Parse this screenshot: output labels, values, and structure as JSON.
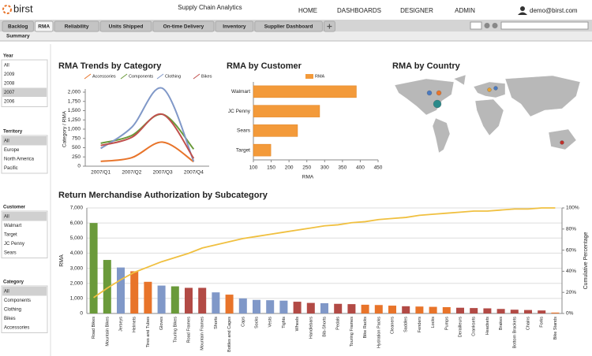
{
  "header": {
    "logo": "birst",
    "app_title": "Supply Chain Analytics",
    "nav": [
      "HOME",
      "DASHBOARDS",
      "DESIGNER",
      "ADMIN"
    ],
    "user": "demo@birst.com"
  },
  "tabs": {
    "items": [
      "Backlog",
      "RMA",
      "Reliability",
      "Units Shipped",
      "On-time Delivery",
      "Inventory",
      "Supplier Dashboard"
    ],
    "active": 1,
    "subtab": "Summary"
  },
  "filters": [
    {
      "title": "Year",
      "options": [
        "All",
        "2009",
        "2008",
        "2007",
        "2006"
      ],
      "selected": 3
    },
    {
      "title": "Territory",
      "options": [
        "All",
        "Europe",
        "North America",
        "Pacific"
      ],
      "selected": 0
    },
    {
      "title": "Customer",
      "options": [
        "All",
        "Walmart",
        "Target",
        "JC Penny",
        "Sears"
      ],
      "selected": 0
    },
    {
      "title": "Category",
      "options": [
        "All",
        "Components",
        "Clothing",
        "Bikes",
        "Accessories"
      ],
      "selected": 0
    }
  ],
  "chart_data": [
    {
      "type": "line",
      "title": "RMA Trends by Category",
      "y_label": "Category / RMA",
      "categories": [
        "2007/Q1",
        "2007/Q2",
        "2007/Q3",
        "2007/Q4"
      ],
      "series": [
        {
          "name": "Accessories",
          "color": "#e8742a",
          "values": [
            130,
            230,
            650,
            120
          ]
        },
        {
          "name": "Components",
          "color": "#6a9a3a",
          "values": [
            620,
            830,
            1400,
            460
          ]
        },
        {
          "name": "Clothing",
          "color": "#8098c8",
          "values": [
            480,
            1050,
            2100,
            130
          ]
        },
        {
          "name": "Bikes",
          "color": "#c0504d",
          "values": [
            560,
            780,
            1400,
            210
          ]
        }
      ],
      "ylim": [
        0,
        2000
      ],
      "yticks": [
        0,
        250,
        500,
        750,
        {
          "value": 1000,
          "label": "1,000"
        },
        {
          "value": 1250,
          "label": "1,250"
        },
        {
          "value": 1500,
          "label": "1,500"
        },
        {
          "value": 1750,
          "label": "1,750"
        },
        {
          "value": 2000,
          "label": "2,000"
        }
      ]
    },
    {
      "type": "hbar",
      "title": "RMA by Customer",
      "x_label": "RMA",
      "categories": [
        "Walmart",
        "JC Penny",
        "Sears",
        "Target"
      ],
      "series": [
        {
          "name": "RMA",
          "color": "#f39a3a",
          "values": [
            389,
            286,
            224,
            149
          ]
        }
      ],
      "xlim": [
        100,
        450
      ],
      "xticks": [
        100,
        150,
        200,
        250,
        300,
        350,
        400,
        450
      ]
    },
    {
      "type": "map",
      "title": "RMA by Country"
    },
    {
      "type": "pareto",
      "title": "Return Merchandise Authorization by Subcategory",
      "y_label": "RMA",
      "y2_label": "Cumulative Percentage",
      "categories": [
        "Road Bikes",
        "Mountain Bikes",
        "Jerseys",
        "Helmets",
        "Tires and Tubes",
        "Gloves",
        "Touring Bikes",
        "Road Frames",
        "Mountain Frames",
        "Shorts",
        "Bottles and Cages",
        "Caps",
        "Socks",
        "Vests",
        "Tights",
        "Wheels",
        "Handlebars",
        "Bib-Shorts",
        "Pedals",
        "Touring Frames",
        "Bike Racks",
        "Hydration Packs",
        "Cleaners",
        "Saddles",
        "Fenders",
        "Locks",
        "Pumps",
        "Derailleurs",
        "Cranksets",
        "Headsets",
        "Brakes",
        "Bottom Brackets",
        "Chains",
        "Forks",
        "Bike Stands"
      ],
      "series": [
        {
          "type": "bar",
          "values": [
            6000,
            3550,
            3050,
            2800,
            2100,
            1850,
            1800,
            1700,
            1700,
            1400,
            1250,
            1000,
            900,
            880,
            850,
            780,
            700,
            680,
            640,
            620,
            580,
            560,
            520,
            480,
            460,
            440,
            420,
            380,
            360,
            340,
            300,
            250,
            230,
            200,
            60
          ],
          "colors": [
            "#6a9a3a",
            "#6a9a3a",
            "#8098c8",
            "#e8742a",
            "#e8742a",
            "#8098c8",
            "#6a9a3a",
            "#b24a45",
            "#b24a45",
            "#8098c8",
            "#e8742a",
            "#8098c8",
            "#8098c8",
            "#8098c8",
            "#8098c8",
            "#b24a45",
            "#b24a45",
            "#8098c8",
            "#b24a45",
            "#b24a45",
            "#e8742a",
            "#e8742a",
            "#e8742a",
            "#b24a45",
            "#e8742a",
            "#e8742a",
            "#e8742a",
            "#b24a45",
            "#b24a45",
            "#b24a45",
            "#b24a45",
            "#b24a45",
            "#b24a45",
            "#b24a45",
            "#e8742a"
          ]
        },
        {
          "type": "line",
          "axis": "y2",
          "color": "#f0c040",
          "values": [
            15,
            24,
            32,
            39,
            44,
            49,
            53,
            57,
            62,
            65,
            68,
            71,
            73,
            75,
            77,
            79,
            81,
            83,
            84,
            86,
            87,
            89,
            90,
            91,
            93,
            94,
            95,
            96,
            97,
            97,
            98,
            99,
            99,
            100,
            100
          ]
        }
      ],
      "ylim": [
        0,
        7000
      ],
      "yticks": [
        0,
        {
          "value": 1000,
          "label": "1,000"
        },
        {
          "value": 2000,
          "label": "2,000"
        },
        {
          "value": 3000,
          "label": "3,000"
        },
        {
          "value": 4000,
          "label": "4,000"
        },
        {
          "value": 5000,
          "label": "5,000"
        },
        {
          "value": 6000,
          "label": "6,000"
        },
        {
          "value": 7000,
          "label": "7,000"
        }
      ],
      "y2lim": [
        0,
        100
      ],
      "y2ticks": [
        {
          "value": 0,
          "label": "0%"
        },
        {
          "value": 20,
          "label": "20%"
        },
        {
          "value": 40,
          "label": "40%"
        },
        {
          "value": 60,
          "label": "60%"
        },
        {
          "value": 80,
          "label": "80%"
        },
        {
          "value": 100,
          "label": "100%"
        }
      ],
      "grid": true
    }
  ]
}
